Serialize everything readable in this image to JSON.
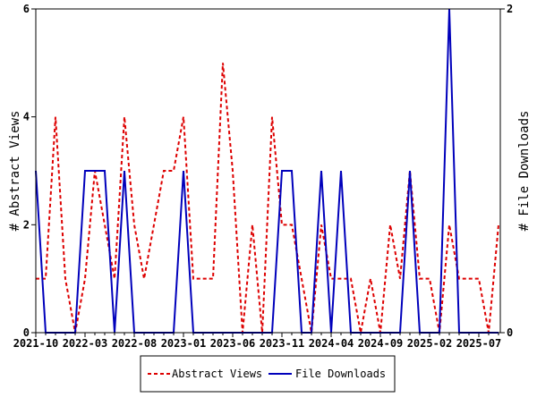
{
  "chart_data": {
    "type": "line",
    "title": "",
    "xlabel": "",
    "ylabel": "# Abstract Views",
    "y2label": "# File Downloads",
    "ylim": [
      0,
      6
    ],
    "y2lim": [
      0,
      2
    ],
    "yticks": [
      "0",
      "2",
      "4",
      "6"
    ],
    "y2ticks": [
      "0",
      "2"
    ],
    "xticklabels": [
      "2021-10",
      "2022-03",
      "2022-08",
      "2023-01",
      "2023-06",
      "2023-11",
      "2024-04",
      "2024-09",
      "2025-02",
      "2025-07"
    ],
    "x": [
      "2021-10",
      "2021-11",
      "2021-12",
      "2022-01",
      "2022-02",
      "2022-03",
      "2022-04",
      "2022-05",
      "2022-06",
      "2022-07",
      "2022-08",
      "2022-09",
      "2022-10",
      "2022-11",
      "2022-12",
      "2023-01",
      "2023-02",
      "2023-03",
      "2023-04",
      "2023-05",
      "2023-06",
      "2023-07",
      "2023-08",
      "2023-09",
      "2023-10",
      "2023-11",
      "2023-12",
      "2024-01",
      "2024-02",
      "2024-03",
      "2024-04",
      "2024-05",
      "2024-06",
      "2024-07",
      "2024-08",
      "2024-09",
      "2024-10",
      "2024-11",
      "2024-12",
      "2025-01",
      "2025-02",
      "2025-03",
      "2025-04",
      "2025-05",
      "2025-06",
      "2025-07",
      "2025-08",
      "2025-09"
    ],
    "series": [
      {
        "name": "Abstract Views",
        "axis": "left",
        "color": "#dd0000",
        "style": "dashed",
        "values": [
          1,
          1,
          4,
          1,
          0,
          1,
          3,
          2,
          1,
          4,
          2,
          1,
          2,
          3,
          3,
          4,
          1,
          1,
          1,
          5,
          3,
          0,
          2,
          0,
          4,
          2,
          2,
          1,
          0,
          2,
          1,
          1,
          1,
          0,
          1,
          0,
          2,
          1,
          3,
          1,
          1,
          0,
          2,
          1,
          1,
          1,
          0,
          2
        ]
      },
      {
        "name": "File Downloads",
        "axis": "right",
        "color": "#0000bb",
        "style": "solid",
        "values": [
          1,
          0,
          0,
          0,
          0,
          1,
          1,
          1,
          0,
          1,
          0,
          0,
          0,
          0,
          0,
          1,
          0,
          0,
          0,
          0,
          0,
          0,
          0,
          0,
          0,
          1,
          1,
          0,
          0,
          1,
          0,
          1,
          0,
          0,
          0,
          0,
          0,
          0,
          1,
          0,
          0,
          0,
          2,
          0,
          0,
          0,
          0,
          0
        ]
      }
    ],
    "legend": {
      "placement": "bottom",
      "entries": [
        "Abstract Views",
        "File Downloads"
      ]
    },
    "grid": false
  }
}
